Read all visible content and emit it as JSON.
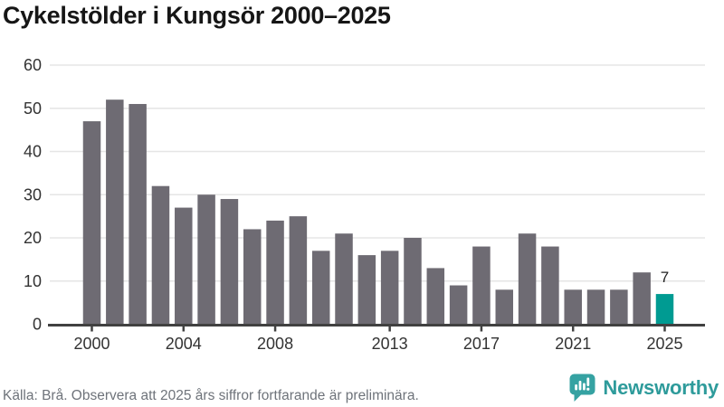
{
  "title": "Cykelstölder i Kungsör 2000–2025",
  "footer": {
    "source_note": "Källa: Brå. Observera att 2025 års siffror fortfarande är preliminära."
  },
  "branding": {
    "logo_text": "Newsworthy",
    "logo_color": "#2e9b9b",
    "logo_icon": "bar-chart-speech-bubble-icon"
  },
  "chart_data": {
    "type": "bar",
    "title": "Cykelstölder i Kungsör 2000–2025",
    "categories": [
      2000,
      2001,
      2002,
      2003,
      2004,
      2005,
      2006,
      2007,
      2008,
      2009,
      2010,
      2011,
      2012,
      2013,
      2014,
      2015,
      2016,
      2017,
      2018,
      2019,
      2020,
      2021,
      2022,
      2023,
      2024,
      2025
    ],
    "values": [
      47,
      52,
      51,
      32,
      27,
      30,
      29,
      22,
      24,
      25,
      17,
      21,
      16,
      17,
      20,
      13,
      9,
      18,
      8,
      21,
      18,
      8,
      8,
      8,
      12,
      7
    ],
    "highlight": {
      "category": 2025,
      "value_label": "7",
      "color": "#009b92"
    },
    "bar_color": "#6e6b73",
    "grid_color": "#e5e5e5",
    "axis_color": "#414141",
    "tick_label_color": "#333333",
    "xlabel": "",
    "ylabel": "",
    "ylim": [
      0,
      60
    ],
    "yticks": [
      0,
      10,
      20,
      30,
      40,
      50,
      60
    ],
    "xticks": [
      2000,
      2004,
      2008,
      2013,
      2017,
      2021,
      2025
    ],
    "grid": "horizontal",
    "legend": "none"
  }
}
